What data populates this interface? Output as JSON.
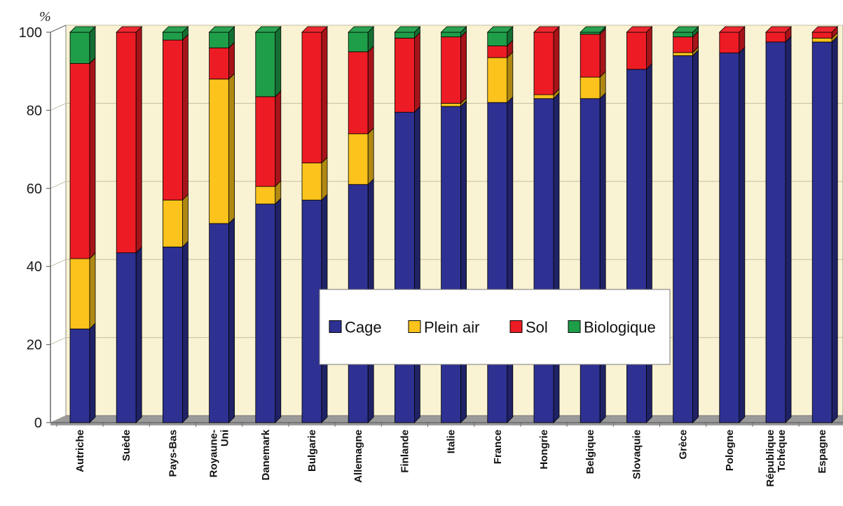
{
  "chart_data": {
    "type": "bar",
    "stacked": true,
    "three_d": true,
    "ylabel": "%",
    "ylim": [
      0,
      100
    ],
    "yticks": [
      0,
      20,
      40,
      60,
      80,
      100
    ],
    "grid": true,
    "legend_position": "bottom-center",
    "categories": [
      "Autriche",
      "Suède",
      "Pays-Bas",
      "Royaune-Uni",
      "Danemark",
      "Bulgarie",
      "Allemagne",
      "Finlande",
      "Italie",
      "France",
      "Hongrie",
      "Belgique",
      "Slovaquie",
      "Grèce",
      "Pologne",
      "République Tchéque",
      "Espagne"
    ],
    "category_label_lines": [
      [
        "Autriche"
      ],
      [
        "Suède"
      ],
      [
        "Pays-Bas"
      ],
      [
        "Royaune-",
        "Uni"
      ],
      [
        "Danemark"
      ],
      [
        "Bulgarie"
      ],
      [
        "Allemagne"
      ],
      [
        "Finlande"
      ],
      [
        "Italie"
      ],
      [
        "France"
      ],
      [
        "Hongrie"
      ],
      [
        "Belgique"
      ],
      [
        "Slovaquie"
      ],
      [
        "Grèce"
      ],
      [
        "Pologne"
      ],
      [
        "République",
        "Tchéque"
      ],
      [
        "Espagne"
      ]
    ],
    "series": [
      {
        "name": "Cage",
        "color": "#2E3192",
        "values": [
          24,
          43.5,
          45,
          51,
          56,
          57,
          61,
          79.5,
          81,
          82,
          83,
          83,
          90.5,
          94,
          94.7,
          97.5,
          97.5
        ]
      },
      {
        "name": "Plein air",
        "color": "#FBC31B",
        "values": [
          18,
          0,
          12,
          37,
          4.5,
          9.5,
          13,
          0,
          0.8,
          11.5,
          1,
          5.5,
          0,
          0.8,
          0,
          0,
          1
        ]
      },
      {
        "name": "Sol",
        "color": "#ED1C24",
        "values": [
          50,
          56.5,
          41,
          8,
          23,
          33.5,
          21,
          19,
          17,
          3,
          16,
          11,
          9.5,
          4,
          5.3,
          2.5,
          1.5
        ]
      },
      {
        "name": "Biologique",
        "color": "#1E9E48",
        "values": [
          8,
          0,
          2,
          4,
          16.5,
          0,
          5,
          1.5,
          1.2,
          3.5,
          0,
          0.5,
          0,
          1.2,
          0,
          0,
          0
        ]
      }
    ],
    "colors": {
      "wall": "#FAF3D3",
      "floor": "#9A9A9A",
      "grid": "#C4BDA3",
      "axis": "#6B6B6B"
    }
  }
}
